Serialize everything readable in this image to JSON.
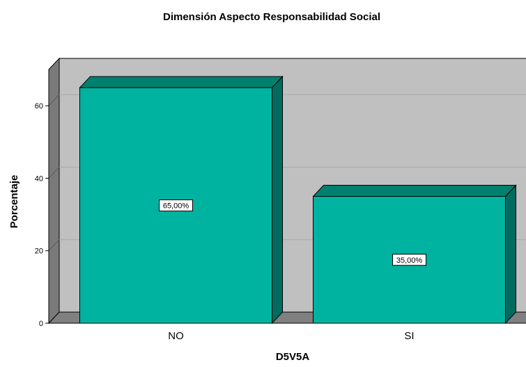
{
  "chart_data": {
    "type": "bar",
    "title": "Dimensión Aspecto Responsabilidad Social",
    "xlabel": "D5V5A",
    "ylabel": "Porcentaje",
    "categories": [
      "NO",
      "SI"
    ],
    "values": [
      65,
      35
    ],
    "data_labels": [
      "65,00%",
      "35,00%"
    ],
    "ylim": [
      0,
      70
    ],
    "yticks": [
      0,
      20,
      40,
      60
    ],
    "grid": true,
    "legend": "none",
    "colors": {
      "bar_front": "#00b2a0",
      "bar_top": "#00806f",
      "bar_side": "#006b5e",
      "plot_back": "#c0c0c0",
      "wall_side": "#7a7a7a",
      "floor": "#808080",
      "gridline": "#a8a8a8"
    }
  }
}
